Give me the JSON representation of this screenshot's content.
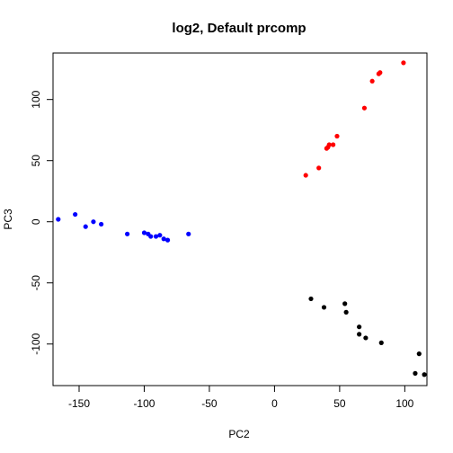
{
  "chart_data": {
    "type": "scatter",
    "title": "log2, Default prcomp",
    "xlabel": "PC2",
    "ylabel": "PC3",
    "xlim": [
      -170,
      117
    ],
    "ylim": [
      -134,
      138
    ],
    "xticks": [
      -150,
      -100,
      -50,
      0,
      50,
      100
    ],
    "yticks": [
      -100,
      -50,
      0,
      50,
      100
    ],
    "grid": false,
    "series": [
      {
        "color": "#0000ff",
        "points": [
          [
            -166,
            2
          ],
          [
            -153,
            6
          ],
          [
            -145,
            -4
          ],
          [
            -139,
            0
          ],
          [
            -133,
            -2
          ],
          [
            -113,
            -10
          ],
          [
            -100,
            -9
          ],
          [
            -97,
            -10
          ],
          [
            -95,
            -12
          ],
          [
            -91,
            -12
          ],
          [
            -88,
            -11
          ],
          [
            -85,
            -14
          ],
          [
            -82,
            -15
          ],
          [
            -66,
            -10
          ]
        ]
      },
      {
        "color": "#ff0000",
        "points": [
          [
            24,
            38
          ],
          [
            34,
            44
          ],
          [
            40,
            60
          ],
          [
            41,
            61
          ],
          [
            42,
            63
          ],
          [
            45,
            63
          ],
          [
            48,
            70
          ],
          [
            69,
            93
          ],
          [
            75,
            115
          ],
          [
            80,
            121
          ],
          [
            81,
            122
          ],
          [
            99,
            130
          ]
        ]
      },
      {
        "color": "#000000",
        "points": [
          [
            28,
            -63
          ],
          [
            38,
            -70
          ],
          [
            54,
            -67
          ],
          [
            55,
            -74
          ],
          [
            65,
            -86
          ],
          [
            65,
            -92
          ],
          [
            70,
            -95
          ],
          [
            82,
            -99
          ],
          [
            108,
            -124
          ],
          [
            111,
            -108
          ],
          [
            115,
            -125
          ]
        ]
      }
    ]
  }
}
